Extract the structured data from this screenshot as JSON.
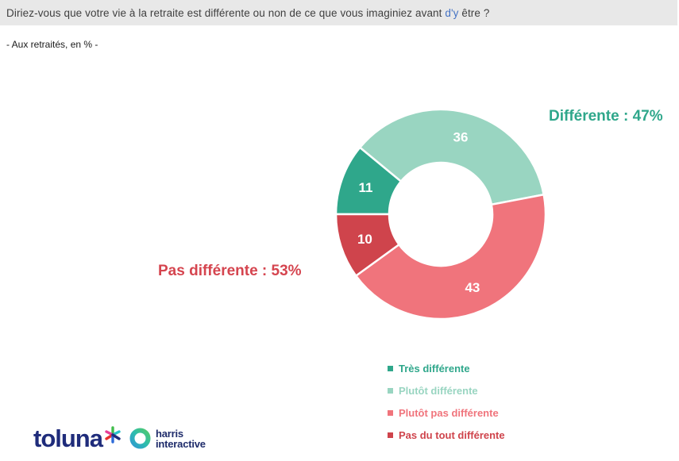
{
  "header": {
    "title_part1": "Diriez-vous que votre vie à la retraite est différente ou non de ce que vous imaginiez avant ",
    "title_highlight": "d'y",
    "title_part2": " être ?",
    "highlight_color": "#4472C4"
  },
  "subtitle": "- Aux retraités, en % -",
  "chart_data": {
    "type": "pie",
    "style": "donut",
    "title": "Diriez-vous que votre vie à la retraite est différente ou non de ce que vous imaginiez avant d'y être ?",
    "population_note": "Aux retraités, en %",
    "unit": "%",
    "total": 100,
    "start_angle_deg": 270,
    "outer_radius_px": 132,
    "inner_radius_px": 65,
    "segments": [
      {
        "key": "tres-differente",
        "label": "Très différente",
        "value": 11,
        "color": "#2FA78B"
      },
      {
        "key": "plutot-differente",
        "label": "Plutôt différente",
        "value": 36,
        "color": "#99D5C1"
      },
      {
        "key": "plutot-pas-differente",
        "label": "Plutôt pas différente",
        "value": 43,
        "color": "#F0747C"
      },
      {
        "key": "pas-du-tout-differente",
        "label": "Pas du tout différente",
        "value": 10,
        "color": "#CF444C"
      }
    ],
    "annotations": [
      {
        "key": "different",
        "text": "Différente : 47%",
        "value": 47,
        "color": "#2FA78B"
      },
      {
        "key": "not-different",
        "text": "Pas différente : 53%",
        "value": 53,
        "color": "#D5454F"
      }
    ],
    "legend_position": "bottom-right",
    "grid": false
  },
  "footer": {
    "toluna_wordmark": "toluna",
    "harris_line1": "harris",
    "harris_line2": "interactive"
  }
}
